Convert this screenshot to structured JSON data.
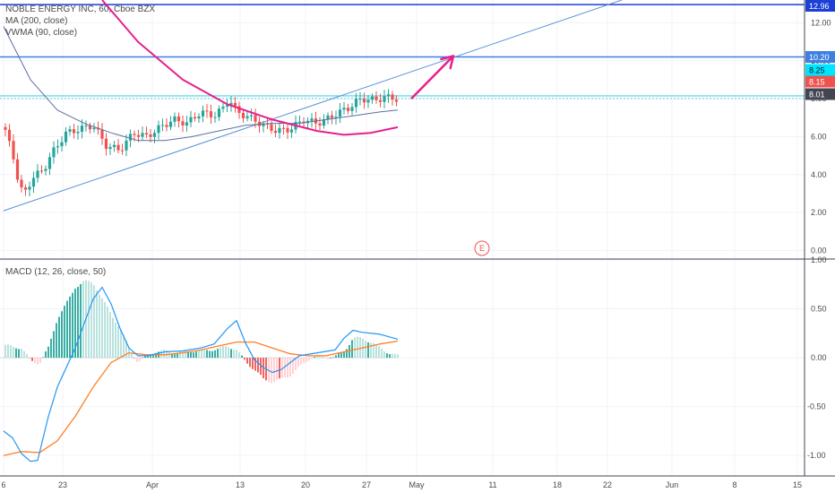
{
  "header": {
    "symbol_line": "NOBLE ENERGY INC, 60, Cboe BZX",
    "ma_label": "MA (200, close)",
    "vwma_label": "VWMA (90, close)",
    "macd_label": "MACD (12, 26, close, 50)"
  },
  "event_marker": {
    "label": "E"
  },
  "colors": {
    "up": "#26a69a",
    "down": "#ef5350",
    "ma": "#e91e8c",
    "vwma": "#5b6f9e",
    "trendline": "#5b8fd6",
    "level": "#3f7fe0",
    "level_cyan": "#4dd0e1",
    "macd_line": "#2196f3",
    "signal_line": "#ff7f27",
    "arrow": "#e91e8c"
  },
  "chart_data": [
    {
      "type": "candlestick",
      "pane": "price",
      "ylim": [
        -0.4,
        13.2
      ],
      "y_ticks": [
        "12.00",
        "10.00",
        "8.00",
        "6.00",
        "4.00",
        "2.00",
        "0.00"
      ],
      "x_ticks": [
        "6",
        "23",
        "Apr",
        "13",
        "20",
        "27",
        "May",
        "11",
        "18",
        "22",
        "Jun",
        "8",
        "15"
      ],
      "price_levels": [
        {
          "label": "12.96",
          "value": 12.96
        },
        {
          "label": "10.20",
          "value": 10.2
        },
        {
          "label": "8.25",
          "value": 8.25
        },
        {
          "label": "8.15",
          "value": 8.15
        },
        {
          "label": "8.01",
          "value": 8.01
        }
      ],
      "close_path": [
        {
          "x": 0,
          "y": 6.5
        },
        {
          "x": 0.1,
          "y": 5.2
        },
        {
          "x": 0.18,
          "y": 3.2
        },
        {
          "x": 0.24,
          "y": 3.1
        },
        {
          "x": 0.32,
          "y": 3.8
        },
        {
          "x": 0.45,
          "y": 4.3
        },
        {
          "x": 0.55,
          "y": 5.2
        },
        {
          "x": 0.7,
          "y": 6.2
        },
        {
          "x": 0.85,
          "y": 6.4
        },
        {
          "x": 1,
          "y": 6.6
        },
        {
          "x": 1.15,
          "y": 5.5
        },
        {
          "x": 1.3,
          "y": 5.3
        },
        {
          "x": 1.45,
          "y": 6.2
        },
        {
          "x": 1.6,
          "y": 6.0
        },
        {
          "x": 1.75,
          "y": 6.5
        },
        {
          "x": 1.9,
          "y": 6.9
        },
        {
          "x": 2.05,
          "y": 6.7
        },
        {
          "x": 2.2,
          "y": 7.3
        },
        {
          "x": 2.35,
          "y": 7.1
        },
        {
          "x": 2.45,
          "y": 7.5
        },
        {
          "x": 2.52,
          "y": 8.0
        },
        {
          "x": 2.6,
          "y": 7.3
        },
        {
          "x": 2.75,
          "y": 7.0
        },
        {
          "x": 2.9,
          "y": 6.6
        },
        {
          "x": 3.05,
          "y": 6.3
        },
        {
          "x": 3.2,
          "y": 6.4
        },
        {
          "x": 3.35,
          "y": 6.9
        },
        {
          "x": 3.5,
          "y": 6.7
        },
        {
          "x": 3.6,
          "y": 6.9
        },
        {
          "x": 3.75,
          "y": 7.3
        },
        {
          "x": 3.85,
          "y": 7.5
        },
        {
          "x": 3.95,
          "y": 7.9
        },
        {
          "x": 4.05,
          "y": 8.0
        },
        {
          "x": 4.15,
          "y": 7.9
        },
        {
          "x": 4.25,
          "y": 8.1
        },
        {
          "x": 4.35,
          "y": 8.0
        },
        {
          "x": 4.4,
          "y": 8.0
        }
      ],
      "ma_200": [
        {
          "x": 1.1,
          "y": 13.2
        },
        {
          "x": 1.5,
          "y": 11.0
        },
        {
          "x": 2.0,
          "y": 9.0
        },
        {
          "x": 2.5,
          "y": 7.7
        },
        {
          "x": 3.0,
          "y": 6.9
        },
        {
          "x": 3.5,
          "y": 6.3
        },
        {
          "x": 3.8,
          "y": 6.1
        },
        {
          "x": 4.1,
          "y": 6.2
        },
        {
          "x": 4.4,
          "y": 6.5
        }
      ],
      "vwma_90": [
        {
          "x": 0,
          "y": 11.8
        },
        {
          "x": 0.3,
          "y": 9.0
        },
        {
          "x": 0.6,
          "y": 7.4
        },
        {
          "x": 0.9,
          "y": 6.7
        },
        {
          "x": 1.2,
          "y": 6.2
        },
        {
          "x": 1.5,
          "y": 5.8
        },
        {
          "x": 1.8,
          "y": 5.8
        },
        {
          "x": 2.1,
          "y": 6.0
        },
        {
          "x": 2.4,
          "y": 6.3
        },
        {
          "x": 2.7,
          "y": 6.6
        },
        {
          "x": 3.0,
          "y": 6.7
        },
        {
          "x": 3.3,
          "y": 6.7
        },
        {
          "x": 3.6,
          "y": 6.9
        },
        {
          "x": 3.9,
          "y": 7.1
        },
        {
          "x": 4.2,
          "y": 7.3
        },
        {
          "x": 4.4,
          "y": 7.4
        }
      ],
      "trendline": [
        {
          "x": 0,
          "y": 2.1
        },
        {
          "x": 6.9,
          "y": 13.2
        }
      ],
      "arrow": [
        {
          "x": 4.55,
          "y": 8.0
        },
        {
          "x": 5.02,
          "y": 10.25
        }
      ]
    },
    {
      "type": "bar",
      "pane": "macd",
      "ylim": [
        -1.2,
        1.0
      ],
      "y_ticks": [
        "1.00",
        "0.50",
        "0.00",
        "-0.50",
        "-1.00"
      ],
      "histogram": [
        {
          "x": 0.05,
          "y": 0.12
        },
        {
          "x": 0.2,
          "y": 0.1
        },
        {
          "x": 0.3,
          "y": -0.03
        },
        {
          "x": 0.4,
          "y": -0.06
        },
        {
          "x": 0.5,
          "y": 0.1
        },
        {
          "x": 0.6,
          "y": 0.4
        },
        {
          "x": 0.7,
          "y": 0.55
        },
        {
          "x": 0.8,
          "y": 0.72
        },
        {
          "x": 0.9,
          "y": 0.78
        },
        {
          "x": 1.0,
          "y": 0.77
        },
        {
          "x": 1.1,
          "y": 0.6
        },
        {
          "x": 1.2,
          "y": 0.45
        },
        {
          "x": 1.3,
          "y": 0.3
        },
        {
          "x": 1.4,
          "y": 0.1
        },
        {
          "x": 1.5,
          "y": -0.05
        },
        {
          "x": 1.6,
          "y": 0.02
        },
        {
          "x": 1.7,
          "y": 0.06
        },
        {
          "x": 1.8,
          "y": 0.07
        },
        {
          "x": 1.9,
          "y": 0.05
        },
        {
          "x": 2.0,
          "y": 0.06
        },
        {
          "x": 2.1,
          "y": 0.07
        },
        {
          "x": 2.2,
          "y": 0.07
        },
        {
          "x": 2.3,
          "y": 0.08
        },
        {
          "x": 2.4,
          "y": 0.09
        },
        {
          "x": 2.5,
          "y": 0.12
        },
        {
          "x": 2.6,
          "y": 0.08
        },
        {
          "x": 2.7,
          "y": -0.04
        },
        {
          "x": 2.8,
          "y": -0.12
        },
        {
          "x": 2.9,
          "y": -0.22
        },
        {
          "x": 3.0,
          "y": -0.25
        },
        {
          "x": 3.1,
          "y": -0.22
        },
        {
          "x": 3.2,
          "y": -0.18
        },
        {
          "x": 3.3,
          "y": -0.1
        },
        {
          "x": 3.4,
          "y": -0.02
        },
        {
          "x": 3.5,
          "y": 0.02
        },
        {
          "x": 3.6,
          "y": 0.0
        },
        {
          "x": 3.7,
          "y": 0.01
        },
        {
          "x": 3.8,
          "y": 0.06
        },
        {
          "x": 3.9,
          "y": 0.2
        },
        {
          "x": 4.0,
          "y": 0.2
        },
        {
          "x": 4.1,
          "y": 0.16
        },
        {
          "x": 4.2,
          "y": 0.1
        },
        {
          "x": 4.3,
          "y": 0.05
        },
        {
          "x": 4.4,
          "y": 0.02
        }
      ],
      "macd_line": [
        {
          "x": 0,
          "y": -0.75
        },
        {
          "x": 0.1,
          "y": -0.82
        },
        {
          "x": 0.2,
          "y": -0.98
        },
        {
          "x": 0.3,
          "y": -1.06
        },
        {
          "x": 0.38,
          "y": -1.05
        },
        {
          "x": 0.5,
          "y": -0.6
        },
        {
          "x": 0.6,
          "y": -0.3
        },
        {
          "x": 0.7,
          "y": -0.1
        },
        {
          "x": 0.8,
          "y": 0.1
        },
        {
          "x": 0.9,
          "y": 0.35
        },
        {
          "x": 1.0,
          "y": 0.6
        },
        {
          "x": 1.1,
          "y": 0.72
        },
        {
          "x": 1.2,
          "y": 0.55
        },
        {
          "x": 1.3,
          "y": 0.3
        },
        {
          "x": 1.4,
          "y": 0.1
        },
        {
          "x": 1.5,
          "y": 0.02
        },
        {
          "x": 1.6,
          "y": 0.02
        },
        {
          "x": 1.8,
          "y": 0.06
        },
        {
          "x": 2.0,
          "y": 0.07
        },
        {
          "x": 2.2,
          "y": 0.1
        },
        {
          "x": 2.35,
          "y": 0.14
        },
        {
          "x": 2.5,
          "y": 0.3
        },
        {
          "x": 2.6,
          "y": 0.38
        },
        {
          "x": 2.7,
          "y": 0.15
        },
        {
          "x": 2.8,
          "y": -0.02
        },
        {
          "x": 2.9,
          "y": -0.1
        },
        {
          "x": 3.0,
          "y": -0.15
        },
        {
          "x": 3.1,
          "y": -0.12
        },
        {
          "x": 3.2,
          "y": -0.05
        },
        {
          "x": 3.3,
          "y": 0.02
        },
        {
          "x": 3.5,
          "y": 0.05
        },
        {
          "x": 3.7,
          "y": 0.08
        },
        {
          "x": 3.8,
          "y": 0.2
        },
        {
          "x": 3.9,
          "y": 0.28
        },
        {
          "x": 4.0,
          "y": 0.26
        },
        {
          "x": 4.2,
          "y": 0.24
        },
        {
          "x": 4.4,
          "y": 0.19
        }
      ],
      "signal_line": [
        {
          "x": 0,
          "y": -1.0
        },
        {
          "x": 0.2,
          "y": -0.96
        },
        {
          "x": 0.4,
          "y": -0.97
        },
        {
          "x": 0.6,
          "y": -0.85
        },
        {
          "x": 0.8,
          "y": -0.6
        },
        {
          "x": 1.0,
          "y": -0.3
        },
        {
          "x": 1.2,
          "y": -0.05
        },
        {
          "x": 1.4,
          "y": 0.05
        },
        {
          "x": 1.6,
          "y": 0.03
        },
        {
          "x": 1.8,
          "y": 0.03
        },
        {
          "x": 2.0,
          "y": 0.05
        },
        {
          "x": 2.2,
          "y": 0.08
        },
        {
          "x": 2.4,
          "y": 0.12
        },
        {
          "x": 2.6,
          "y": 0.16
        },
        {
          "x": 2.8,
          "y": 0.16
        },
        {
          "x": 3.0,
          "y": 0.1
        },
        {
          "x": 3.2,
          "y": 0.04
        },
        {
          "x": 3.4,
          "y": 0.02
        },
        {
          "x": 3.6,
          "y": 0.02
        },
        {
          "x": 3.8,
          "y": 0.06
        },
        {
          "x": 4.0,
          "y": 0.1
        },
        {
          "x": 4.2,
          "y": 0.14
        },
        {
          "x": 4.4,
          "y": 0.17
        }
      ]
    }
  ]
}
